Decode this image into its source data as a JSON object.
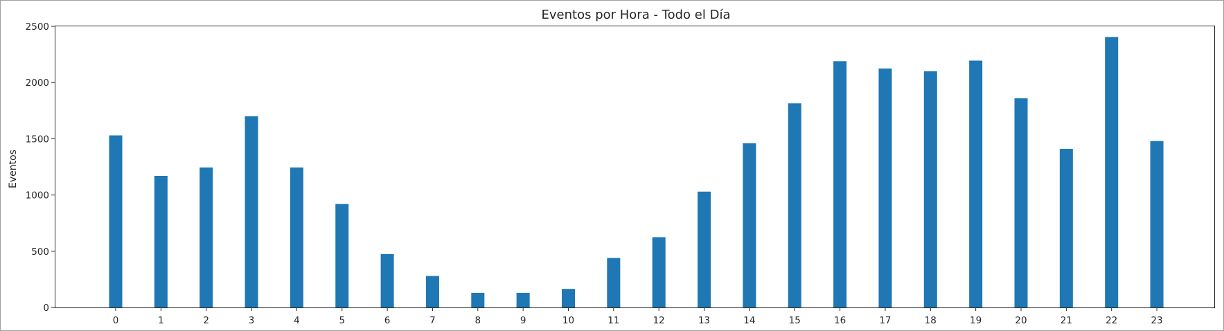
{
  "chart_data": {
    "type": "bar",
    "title": "Eventos por Hora - Todo el Día",
    "xlabel": "",
    "ylabel": "Eventos",
    "categories": [
      "0",
      "1",
      "2",
      "3",
      "4",
      "5",
      "6",
      "7",
      "8",
      "9",
      "10",
      "11",
      "12",
      "13",
      "14",
      "15",
      "16",
      "17",
      "18",
      "19",
      "20",
      "21",
      "22",
      "23"
    ],
    "values": [
      1530,
      1170,
      1245,
      1700,
      1245,
      920,
      475,
      280,
      130,
      130,
      165,
      440,
      625,
      1030,
      1460,
      1815,
      2190,
      2125,
      2100,
      2195,
      1860,
      1410,
      2405,
      1480
    ],
    "ylim": [
      0,
      2500
    ],
    "yticks": [
      0,
      500,
      1000,
      1500,
      2000,
      2500
    ],
    "grid": false,
    "color": "#1f77b4"
  }
}
